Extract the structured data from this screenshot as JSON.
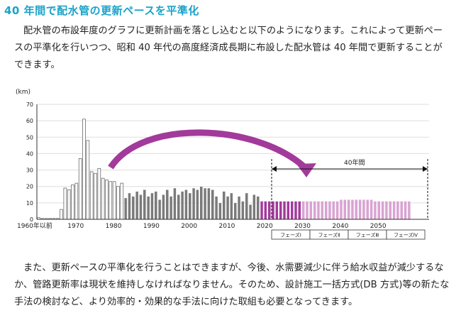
{
  "heading": "40 年間で配水管の更新ペースを平準化",
  "paragraph1": "配水管の布設年度のグラフに更新計画を落とし込むと以下のようになります。これによって更新ペースの平準化を行いつつ、昭和 40 年代の高度経済成長期に布設した配水管は 40 年間で更新することができます。",
  "paragraph2": "また、更新ペースの平準化を行うことはできますが、今後、水需要減少に伴う給水収益が減少するなか、管路更新率は現状を維持しなければなりません。そのため、設計施工一括方式(DB 方式)等の新たな手法の検討など、より効率的・効果的な手法に向けた取組も必要となってきます。",
  "chart_data": {
    "type": "bar",
    "ylabel": "(km)",
    "ylim": [
      0,
      70
    ],
    "yticks": [
      0,
      10,
      20,
      30,
      40,
      50,
      60,
      70
    ],
    "xticks": [
      "1960年以前",
      "1970",
      "1980",
      "1990",
      "2000",
      "2010",
      "2020",
      "2030",
      "2040",
      "2050"
    ],
    "span_label": "40年間",
    "phases": [
      "フェーズⅠ",
      "フェーズⅡ",
      "フェーズⅢ",
      "フェーズⅣ"
    ],
    "series": [
      {
        "name": "existing",
        "color": "#ffffff",
        "x": [
          1960,
          1961,
          1962,
          1963,
          1964,
          1965,
          1966,
          1967,
          1968,
          1969,
          1970,
          1971,
          1972,
          1973,
          1974,
          1975,
          1976,
          1977,
          1978,
          1979,
          1980,
          1981,
          1982
        ],
        "values": [
          1,
          0.5,
          0.5,
          0.5,
          0.5,
          0.5,
          6,
          19,
          18,
          21,
          22,
          37,
          61,
          48,
          29,
          28,
          31,
          25,
          24,
          23,
          23,
          20,
          22
        ]
      },
      {
        "name": "existing-gray",
        "color": "#7a7a7a",
        "x": [
          1983,
          1984,
          1985,
          1986,
          1987,
          1988,
          1989,
          1990,
          1991,
          1992,
          1993,
          1994,
          1995,
          1996,
          1997,
          1998,
          1999,
          2000,
          2001,
          2002,
          2003,
          2004,
          2005,
          2006,
          2007,
          2008,
          2009,
          2010,
          2011,
          2012,
          2013,
          2014,
          2015,
          2016,
          2017,
          2018
        ],
        "values": [
          13,
          16,
          14,
          17,
          15,
          18,
          14,
          16,
          17,
          12,
          15,
          18,
          14,
          19,
          15,
          17,
          18,
          16,
          19,
          18,
          20,
          19,
          19,
          18,
          14,
          10,
          17,
          14,
          16,
          10,
          14,
          11,
          16,
          9,
          15,
          14
        ]
      },
      {
        "name": "phase1",
        "color": "#a23a9b",
        "x": [
          2019,
          2020,
          2021,
          2022,
          2023,
          2024,
          2025,
          2026,
          2027,
          2028,
          2029
        ],
        "values": [
          11,
          11,
          11,
          11,
          11,
          11,
          11,
          11,
          11,
          11,
          11
        ]
      },
      {
        "name": "phase2-4",
        "color": "#d9a3d2",
        "x": [
          2030,
          2031,
          2032,
          2033,
          2034,
          2035,
          2036,
          2037,
          2038,
          2039,
          2040,
          2041,
          2042,
          2043,
          2044,
          2045,
          2046,
          2047,
          2048,
          2049,
          2050,
          2051,
          2052,
          2053,
          2054,
          2055,
          2056,
          2057,
          2058
        ],
        "values": [
          11,
          11,
          11,
          11,
          11,
          11,
          11,
          11,
          11,
          11,
          12,
          12,
          12,
          12,
          12,
          12,
          12,
          12,
          12,
          11,
          11,
          11,
          11,
          11,
          11,
          11,
          11,
          11,
          11
        ]
      }
    ]
  }
}
